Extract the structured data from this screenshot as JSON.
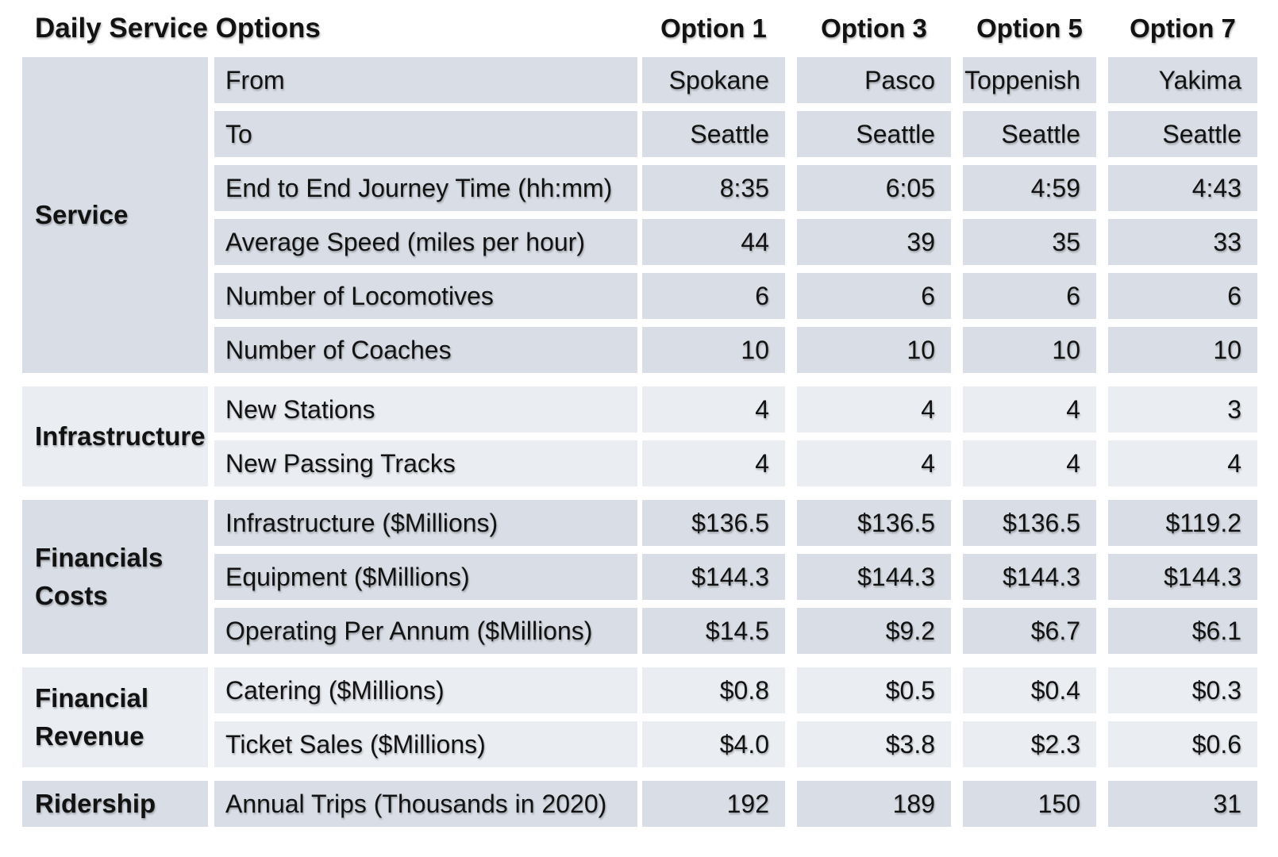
{
  "chart_data": {
    "type": "table",
    "title": "Daily Service Options",
    "columns": [
      "Option 1",
      "Option 3",
      "Option 5",
      "Option 7"
    ],
    "row_groups": [
      {
        "name": "Service",
        "tone": "dark",
        "rows": [
          {
            "label": "From",
            "values": [
              "Spokane",
              "Pasco",
              "Toppenish",
              "Yakima"
            ]
          },
          {
            "label": "To",
            "values": [
              "Seattle",
              "Seattle",
              "Seattle",
              "Seattle"
            ]
          },
          {
            "label": "End to End Journey Time (hh:mm)",
            "values": [
              "8:35",
              "6:05",
              "4:59",
              "4:43"
            ]
          },
          {
            "label": "Average Speed (miles per hour)",
            "values": [
              "44",
              "39",
              "35",
              "33"
            ]
          },
          {
            "label": "Number of Locomotives",
            "values": [
              "6",
              "6",
              "6",
              "6"
            ]
          },
          {
            "label": "Number of Coaches",
            "values": [
              "10",
              "10",
              "10",
              "10"
            ]
          }
        ]
      },
      {
        "name": "Infrastructure",
        "tone": "light",
        "rows": [
          {
            "label": "New Stations",
            "values": [
              "4",
              "4",
              "4",
              "3"
            ]
          },
          {
            "label": "New Passing Tracks",
            "values": [
              "4",
              "4",
              "4",
              "4"
            ]
          }
        ]
      },
      {
        "name": "Financials Costs",
        "tone": "dark",
        "rows": [
          {
            "label": "Infrastructure ($Millions)",
            "values": [
              "$136.5",
              "$136.5",
              "$136.5",
              "$119.2"
            ]
          },
          {
            "label": "Equipment ($Millions)",
            "values": [
              "$144.3",
              "$144.3",
              "$144.3",
              "$144.3"
            ]
          },
          {
            "label": "Operating Per Annum ($Millions)",
            "values": [
              "$14.5",
              "$9.2",
              "$6.7",
              "$6.1"
            ]
          }
        ]
      },
      {
        "name": "Financial Revenue",
        "tone": "light",
        "rows": [
          {
            "label": "Catering ($Millions)",
            "values": [
              "$0.8",
              "$0.5",
              "$0.4",
              "$0.3"
            ]
          },
          {
            "label": "Ticket Sales ($Millions)",
            "values": [
              "$4.0",
              "$3.8",
              "$2.3",
              "$0.6"
            ]
          }
        ]
      },
      {
        "name": "Ridership",
        "tone": "dark",
        "rows": [
          {
            "label": "Annual Trips (Thousands in 2020)",
            "values": [
              "192",
              "189",
              "150",
              "31"
            ]
          }
        ]
      }
    ],
    "layout": {
      "legend": "none",
      "grid": "off",
      "value_alignment": "right",
      "header_row_background": "#ffffff"
    },
    "colors": {
      "band_dark": "#d9dee6",
      "band_light": "#eaeef3",
      "gutter": "#ffffff",
      "text": "#121212"
    }
  }
}
